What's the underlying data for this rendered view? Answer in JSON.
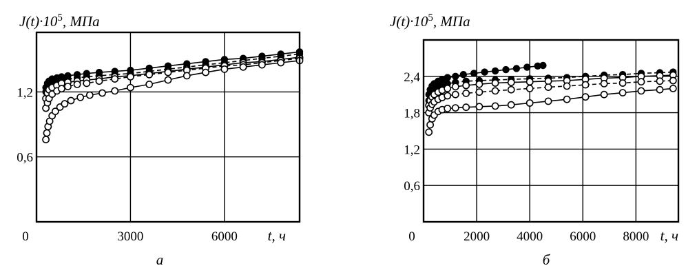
{
  "chart_data": [
    {
      "id": "a",
      "type": "line",
      "caption": "а",
      "ylabel": "J(t)·10",
      "ylabel_exp": "5",
      "ylabel_unit": ", МПа",
      "xlabel": "t, ч",
      "xlim": [
        0,
        8400
      ],
      "ylim": [
        0,
        1.75
      ],
      "xticks": [
        0,
        3000,
        6000
      ],
      "xtick_labels": [
        "0",
        "3000",
        "6000"
      ],
      "yticks": [
        0.6,
        1.2
      ],
      "ytick_labels": [
        "0,6",
        "1,2"
      ],
      "grid": true,
      "series": [
        {
          "marker": "filled",
          "line": "solid",
          "x": [
            300,
            350,
            400,
            500,
            650,
            800,
            1000,
            1300,
            1600,
            2000,
            2500,
            3000,
            3600,
            4200,
            4800,
            5400,
            6000,
            6600,
            7200,
            7800,
            8400
          ],
          "y": [
            1.24,
            1.28,
            1.3,
            1.32,
            1.33,
            1.34,
            1.35,
            1.36,
            1.37,
            1.38,
            1.39,
            1.4,
            1.42,
            1.44,
            1.46,
            1.48,
            1.5,
            1.51,
            1.53,
            1.55,
            1.57
          ]
        },
        {
          "marker": "filled",
          "line": "dashed",
          "x": [
            300,
            350,
            400,
            500,
            650,
            800,
            1000,
            1300,
            1600,
            2000,
            2500,
            3000,
            3600,
            4200,
            4800,
            5400,
            6000,
            6600,
            7200,
            7800,
            8400
          ],
          "y": [
            1.2,
            1.24,
            1.26,
            1.28,
            1.3,
            1.31,
            1.32,
            1.33,
            1.34,
            1.35,
            1.36,
            1.37,
            1.39,
            1.41,
            1.43,
            1.45,
            1.47,
            1.49,
            1.51,
            1.53,
            1.55
          ]
        },
        {
          "marker": "open",
          "line": "solid",
          "x": [
            300,
            350,
            400,
            500,
            650,
            800,
            1000,
            1300,
            1600,
            2000,
            2500,
            3000,
            3600,
            4200,
            4800,
            5400,
            6000,
            6600,
            7200,
            7800,
            8400
          ],
          "y": [
            1.14,
            1.19,
            1.22,
            1.24,
            1.26,
            1.28,
            1.29,
            1.3,
            1.31,
            1.32,
            1.34,
            1.35,
            1.37,
            1.39,
            1.41,
            1.43,
            1.45,
            1.47,
            1.48,
            1.5,
            1.52
          ]
        },
        {
          "marker": "open",
          "line": "dashed",
          "x": [
            300,
            350,
            400,
            500,
            650,
            800,
            1000,
            1300,
            1600,
            2000,
            2500,
            3000,
            3600,
            4200,
            4800,
            5400,
            6000,
            6600,
            7200,
            7800,
            8400
          ],
          "y": [
            1.05,
            1.1,
            1.14,
            1.18,
            1.21,
            1.23,
            1.25,
            1.27,
            1.28,
            1.3,
            1.32,
            1.34,
            1.36,
            1.38,
            1.4,
            1.42,
            1.44,
            1.45,
            1.47,
            1.49,
            1.51
          ]
        },
        {
          "marker": "open",
          "line": "solid",
          "x": [
            300,
            330,
            370,
            420,
            500,
            600,
            750,
            900,
            1100,
            1400,
            1700,
            2100,
            2500,
            3000,
            3600,
            4200,
            4800,
            5400,
            6000,
            6600,
            7200,
            7800,
            8400
          ],
          "y": [
            0.76,
            0.82,
            0.88,
            0.93,
            0.98,
            1.02,
            1.06,
            1.09,
            1.12,
            1.15,
            1.17,
            1.19,
            1.21,
            1.24,
            1.27,
            1.31,
            1.35,
            1.38,
            1.41,
            1.43,
            1.45,
            1.47,
            1.49
          ]
        }
      ]
    },
    {
      "id": "b",
      "type": "line",
      "caption": "б",
      "ylabel": "J(t)·10",
      "ylabel_exp": "5",
      "ylabel_unit": ", МПа",
      "xlabel": "t, ч",
      "xlim": [
        0,
        9600
      ],
      "ylim": [
        0,
        3.0
      ],
      "xticks": [
        0,
        2000,
        4000,
        6000,
        8000
      ],
      "xtick_labels": [
        "0",
        "2000",
        "4000",
        "6000",
        "8000"
      ],
      "yticks": [
        0.6,
        1.2,
        1.8,
        2.4
      ],
      "ytick_labels": [
        "0,6",
        "1,2",
        "1,8",
        "2,4"
      ],
      "grid": true,
      "series": [
        {
          "marker": "filled",
          "line": "solid",
          "x": [
            200,
            250,
            320,
            400,
            550,
            700,
            900,
            1200,
            1500,
            1900,
            2300,
            2700,
            3100,
            3500,
            3900,
            4300,
            4500
          ],
          "y": [
            2.1,
            2.18,
            2.24,
            2.28,
            2.32,
            2.35,
            2.38,
            2.4,
            2.43,
            2.45,
            2.47,
            2.49,
            2.51,
            2.53,
            2.55,
            2.57,
            2.58
          ]
        },
        {
          "marker": "filled",
          "line": "dashed",
          "x": [
            200,
            250,
            320,
            400,
            550,
            700,
            900,
            1200,
            1600,
            2100,
            2700,
            3300,
            4000,
            4700,
            5400,
            6100,
            6800,
            7500,
            8200,
            8900,
            9400
          ],
          "y": [
            2.0,
            2.08,
            2.14,
            2.18,
            2.22,
            2.25,
            2.28,
            2.3,
            2.32,
            2.33,
            2.34,
            2.35,
            2.36,
            2.37,
            2.38,
            2.4,
            2.42,
            2.43,
            2.45,
            2.46,
            2.47
          ]
        },
        {
          "marker": "open",
          "line": "solid",
          "x": [
            200,
            250,
            320,
            400,
            550,
            700,
            900,
            1200,
            1600,
            2100,
            2700,
            3300,
            4000,
            4700,
            5400,
            6100,
            6800,
            7500,
            8200,
            8900,
            9400
          ],
          "y": [
            1.92,
            2.0,
            2.06,
            2.1,
            2.14,
            2.17,
            2.2,
            2.23,
            2.25,
            2.27,
            2.29,
            2.3,
            2.31,
            2.32,
            2.33,
            2.35,
            2.37,
            2.38,
            2.4,
            2.41,
            2.42
          ]
        },
        {
          "marker": "open",
          "line": "dashed",
          "x": [
            200,
            250,
            320,
            400,
            550,
            700,
            900,
            1200,
            1600,
            2100,
            2700,
            3300,
            4000,
            4700,
            5400,
            6100,
            6800,
            7500,
            8200,
            8900,
            9400
          ],
          "y": [
            1.8,
            1.88,
            1.94,
            1.98,
            2.02,
            2.05,
            2.08,
            2.1,
            2.12,
            2.14,
            2.16,
            2.18,
            2.2,
            2.22,
            2.24,
            2.26,
            2.28,
            2.29,
            2.31,
            2.32,
            2.33
          ]
        },
        {
          "marker": "open",
          "line": "solid",
          "x": [
            200,
            250,
            320,
            400,
            550,
            700,
            900,
            1200,
            1600,
            2100,
            2700,
            3300,
            4000,
            4700,
            5400,
            6100,
            6800,
            7500,
            8200,
            8900,
            9400
          ],
          "y": [
            1.48,
            1.6,
            1.7,
            1.76,
            1.82,
            1.85,
            1.87,
            1.88,
            1.89,
            1.9,
            1.91,
            1.93,
            1.96,
            1.99,
            2.02,
            2.06,
            2.1,
            2.13,
            2.16,
            2.18,
            2.2
          ]
        }
      ]
    }
  ]
}
